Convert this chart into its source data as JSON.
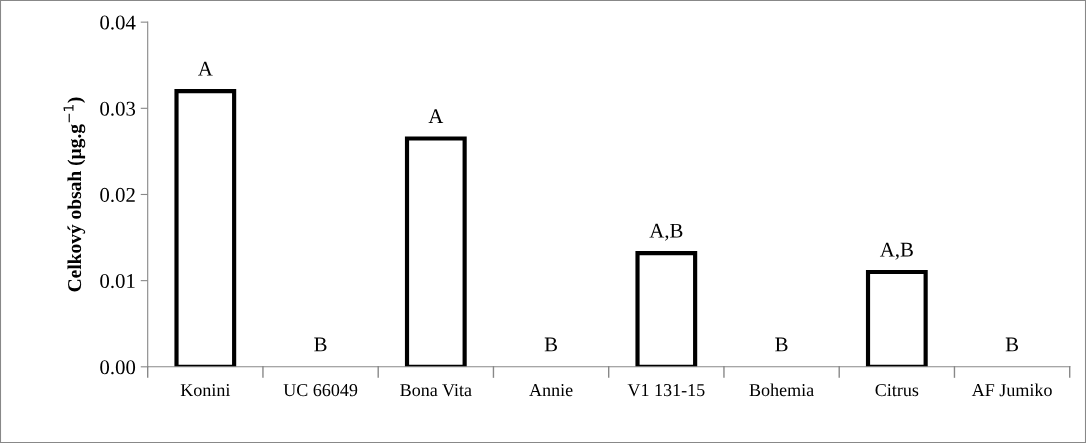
{
  "chart_data": {
    "type": "bar",
    "ylabel": "Celkový obsah (µg.g$^{−1}$)",
    "categories": [
      "Konini",
      "UC 66049",
      "Bona Vita",
      "Annie",
      "V1 131-15",
      "Bohemia",
      "Citrus",
      "AF Jumiko"
    ],
    "values": [
      0.032,
      0,
      0.0265,
      0,
      0.0132,
      0,
      0.011,
      0
    ],
    "color": "#ffffff",
    "ylim": [
      0,
      0.04
    ],
    "yticks": [
      {
        "value": 0,
        "label": "0.00"
      },
      0.01,
      0.02,
      0.03,
      0.04
    ],
    "grid": false,
    "annotations": [
      {
        "text": "A",
        "x": "Konini",
        "y": 0.032
      },
      {
        "text": "B",
        "x": "UC 66049",
        "y": 0
      },
      {
        "text": "A",
        "x": "Bona Vita",
        "y": 0.0265
      },
      {
        "text": "B",
        "x": "Annie",
        "y": 0
      },
      {
        "text": "A,B",
        "x": "V1 131-15",
        "y": 0.0132
      },
      {
        "text": "B",
        "x": "Bohemia",
        "y": 0
      },
      {
        "text": "A,B",
        "x": "Citrus",
        "y": 0.011
      },
      {
        "text": "B",
        "x": "AF Jumiko",
        "y": 0
      }
    ]
  }
}
